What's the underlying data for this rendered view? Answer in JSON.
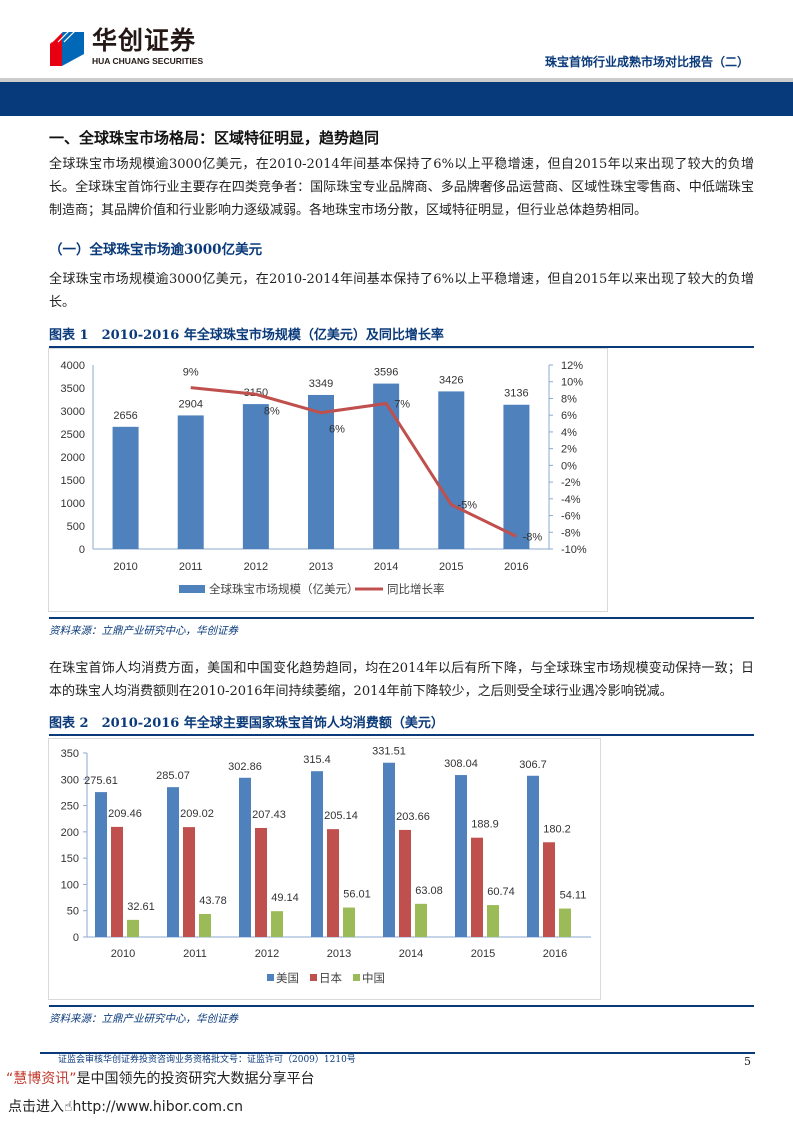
{
  "header": {
    "logo_cn": "华创证券",
    "logo_en": "HUA CHUANG SECURITIES",
    "report_title": "珠宝首饰行业成熟市场对比报告（二）"
  },
  "section": {
    "title": "一、全球珠宝市场格局：区域特征明显，趋势趋同",
    "para1": "全球珠宝市场规模逾3000亿美元，在2010-2014年间基本保持了6%以上平稳增速，但自2015年以来出现了较大的负增长。全球珠宝首饰行业主要存在四类竞争者：国际珠宝专业品牌商、多品牌奢侈品运营商、区域性珠宝零售商、中低端珠宝制造商；其品牌价值和行业影响力逐级减弱。各地珠宝市场分散，区域特征明显，但行业总体趋势相同。",
    "sub_title": "（一）全球珠宝市场逾3000亿美元",
    "para2": "全球珠宝市场规模逾3000亿美元，在2010-2014年间基本保持了6%以上平稳增速，但自2015年以来出现了较大的负增长。",
    "para3": "在珠宝首饰人均消费方面，美国和中国变化趋势趋同，均在2014年以后有所下降，与全球珠宝市场规模变动保持一致；日本的珠宝人均消费额则在2010-2016年间持续萎缩，2014年前下降较少，之后则受全球行业遇冷影响锐减。"
  },
  "chart_data": [
    {
      "type": "bar",
      "caption": "图表 1　2010-2016 年全球珠宝市场规模（亿美元）及同比增长率",
      "categories": [
        "2010",
        "2011",
        "2012",
        "2013",
        "2014",
        "2015",
        "2016"
      ],
      "series": [
        {
          "name": "全球珠宝市场规模（亿美元）",
          "type": "bar",
          "axis": "left",
          "color": "#4f81bd",
          "values": [
            2656,
            2904,
            3150,
            3349,
            3596,
            3426,
            3136
          ],
          "labels": [
            "2656",
            "2904",
            "3150",
            "3349",
            "3596",
            "3426",
            "3136"
          ]
        },
        {
          "name": "同比增长率",
          "type": "line",
          "axis": "right",
          "color": "#c0504d",
          "values": [
            null,
            9.3,
            8.5,
            6.3,
            7.4,
            -4.7,
            -8.5
          ],
          "labels": [
            "",
            "9%",
            "8%",
            "6%",
            "7%",
            "-5%",
            "-8%"
          ]
        }
      ],
      "ylim": [
        0,
        4000
      ],
      "yticks": [
        "0",
        "500",
        "1000",
        "1500",
        "2000",
        "2500",
        "3000",
        "3500",
        "4000"
      ],
      "y2lim": [
        -10,
        12
      ],
      "y2ticks": [
        "-10%",
        "-8%",
        "-6%",
        "-4%",
        "-2%",
        "0%",
        "2%",
        "4%",
        "6%",
        "8%",
        "10%",
        "12%"
      ],
      "legend": "bottom",
      "source": "资料来源：立鼎产业研究中心，华创证券"
    },
    {
      "type": "bar",
      "caption": "图表 2　2010-2016 年全球主要国家珠宝首饰人均消费额（美元）",
      "categories": [
        "2010",
        "2011",
        "2012",
        "2013",
        "2014",
        "2015",
        "2016"
      ],
      "series": [
        {
          "name": "美国",
          "color": "#4f81bd",
          "values": [
            275.61,
            285.07,
            302.86,
            315.4,
            331.51,
            308.04,
            306.7
          ],
          "labels": [
            "275.61",
            "285.07",
            "302.86",
            "315.4",
            "331.51",
            "308.04",
            "306.7"
          ]
        },
        {
          "name": "日本",
          "color": "#c0504d",
          "values": [
            209.46,
            209.02,
            207.43,
            205.14,
            203.66,
            188.9,
            180.2
          ],
          "labels": [
            "209.46",
            "209.02",
            "207.43",
            "205.14",
            "203.66",
            "188.9",
            "180.2"
          ]
        },
        {
          "name": "中国",
          "color": "#9bbb59",
          "values": [
            32.61,
            43.78,
            49.14,
            56.01,
            63.08,
            60.74,
            54.11
          ],
          "labels": [
            "32.61",
            "43.78",
            "49.14",
            "56.01",
            "63.08",
            "60.74",
            "54.11"
          ]
        }
      ],
      "ylim": [
        0,
        350
      ],
      "yticks": [
        "0",
        "50",
        "100",
        "150",
        "200",
        "250",
        "300",
        "350"
      ],
      "legend": "bottom",
      "source": "资料来源：立鼎产业研究中心，华创证券"
    }
  ],
  "footer": {
    "license": "证监会审核华创证券投资咨询业务资格批文号：证监许可（2009）1210号",
    "page": "5",
    "ad_brand": "“慧博资讯”",
    "ad_text": "是中国领先的投资研究大数据分享平台",
    "ad_link_label": "点击进入",
    "ad_url": "http://www.hibor.com.cn"
  }
}
